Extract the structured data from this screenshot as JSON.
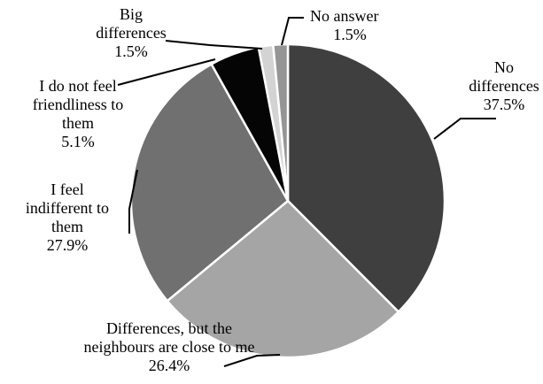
{
  "chart_data": {
    "type": "pie",
    "title": "",
    "slices": [
      {
        "label": [
          "No",
          "differences"
        ],
        "percent_label": "37.5%",
        "value": 37.5,
        "color": "#3f3f3f"
      },
      {
        "label": [
          "Differences, but the",
          "neighbours are close to me"
        ],
        "percent_label": "26.4%",
        "value": 26.4,
        "color": "#a5a5a5"
      },
      {
        "label": [
          "I feel",
          "indifferent to",
          "them"
        ],
        "percent_label": "27.9%",
        "value": 27.9,
        "color": "#707070"
      },
      {
        "label": [
          "I do not feel",
          "friendliness to",
          "them"
        ],
        "percent_label": "5.1%",
        "value": 5.1,
        "color": "#050505"
      },
      {
        "label": [
          "Big",
          "differences"
        ],
        "percent_label": "1.5%",
        "value": 1.5,
        "color": "#d3d3d3"
      },
      {
        "label": [
          "No answer"
        ],
        "percent_label": "1.5%",
        "value": 1.5,
        "color": "#959595"
      }
    ]
  }
}
